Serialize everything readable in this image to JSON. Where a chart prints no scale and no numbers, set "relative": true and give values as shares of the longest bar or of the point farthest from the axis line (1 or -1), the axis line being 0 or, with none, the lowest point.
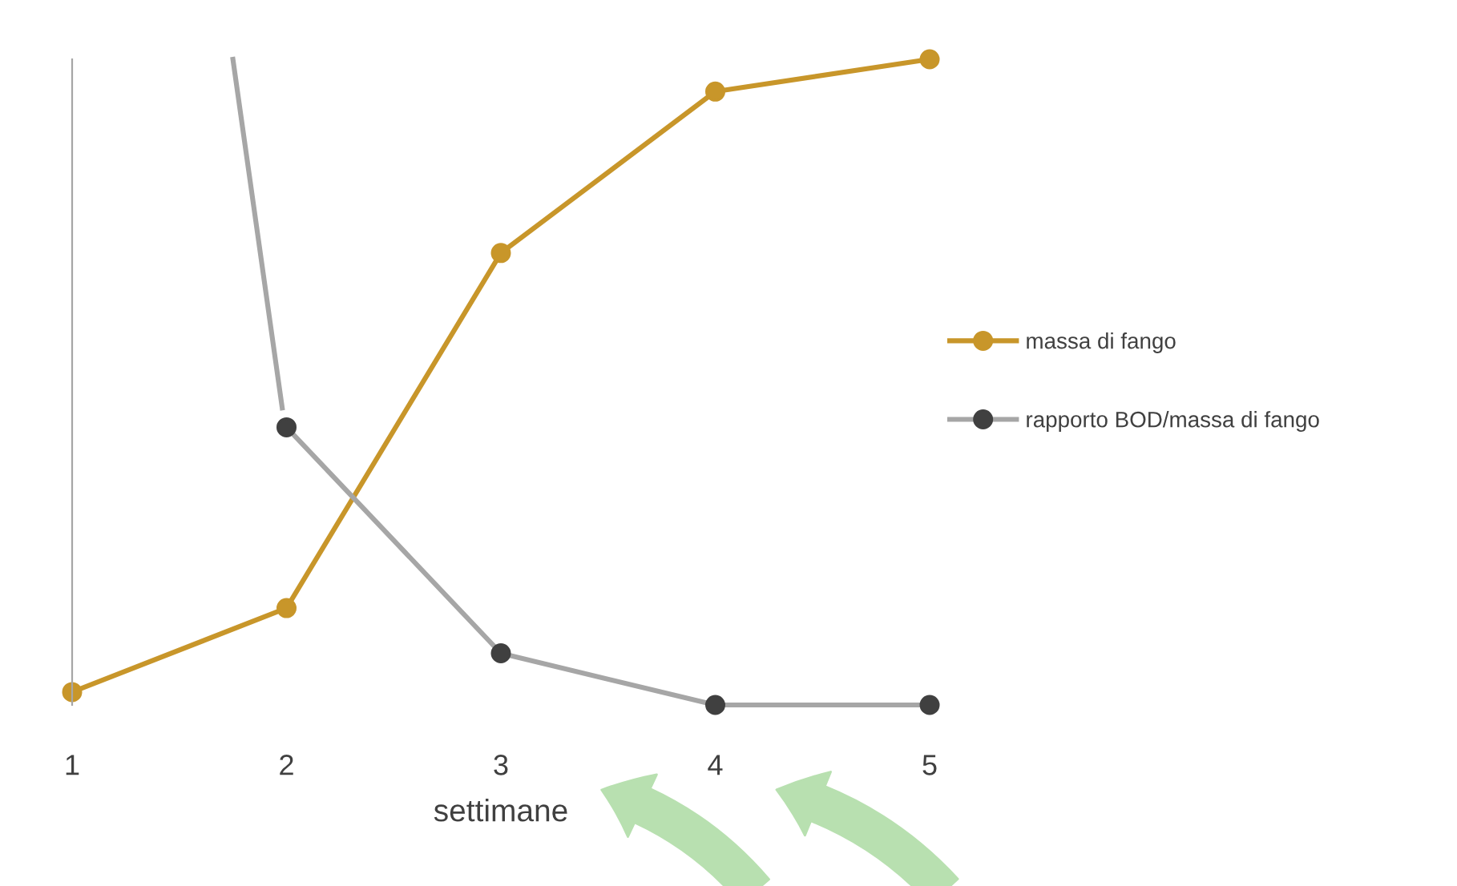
{
  "chart_data": {
    "type": "line",
    "relative": true,
    "xlabel": "settimane",
    "xlim": [
      1,
      5
    ],
    "xticks": [
      1,
      2,
      3,
      4,
      5
    ],
    "grid": false,
    "legend": "right",
    "marker": "circle",
    "line_style": "solid",
    "series": [
      {
        "name": "massa di fango",
        "color": "#c8962a",
        "x": [
          1,
          2,
          3,
          4,
          5
        ],
        "values": [
          0.02,
          0.15,
          0.7,
          0.95,
          1.0
        ]
      },
      {
        "color": "#a6a6a6",
        "x": [
          1.75,
          1.98
        ],
        "values": [
          1.0,
          0.46
        ],
        "marker": "none"
      },
      {
        "name": "rapporto BOD/massa di fango",
        "color": "#a6a6a6",
        "x": [
          2,
          3,
          4,
          5
        ],
        "values": [
          0.43,
          0.08,
          0.0,
          0.0
        ]
      }
    ]
  }
}
